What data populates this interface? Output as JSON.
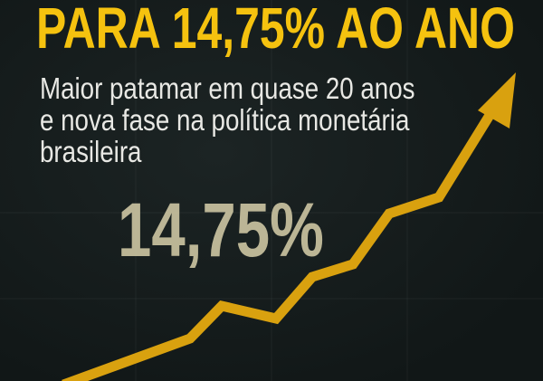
{
  "headline": "PARA 14,75% AO ANO",
  "subtitle_lines": [
    "Maior patamar em quase 20 anos",
    "e nova fase na política monetária",
    "brasileira"
  ],
  "big_number": "14,75%",
  "colors": {
    "accent": "#f5c20f",
    "arrow": "#d9a10f",
    "background": "#131a1a",
    "text": "#e8e8e4"
  },
  "icon": "rising-arrow-icon"
}
